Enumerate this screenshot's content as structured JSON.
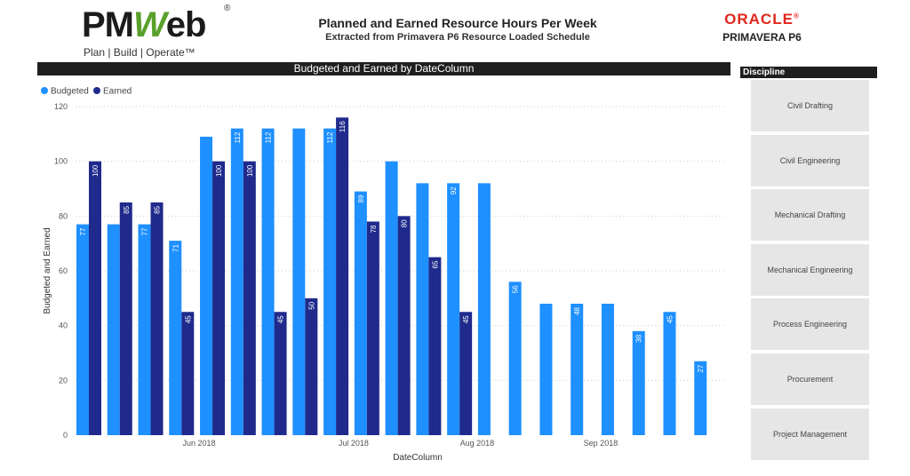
{
  "logo": {
    "brand_prefix": "PM",
    "brand_w": "W",
    "brand_suffix": "eb",
    "registered": "®",
    "tagline": "Plan | Build | Operate™"
  },
  "header": {
    "title": "Planned and Earned Resource Hours Per Week",
    "subtitle": "Extracted from Primavera P6 Resource Loaded Schedule"
  },
  "oracle": {
    "brand": "ORACLE",
    "registered": "®",
    "product": "PRIMAVERA P6"
  },
  "chart_title_bar": "Budgeted and Earned by DateColumn",
  "discipline_panel": {
    "header": "Discipline",
    "items": [
      "Civil Drafting",
      "Civil Engineering",
      "Mechanical Drafting",
      "Mechanical Engineering",
      "Process Engineering",
      "Procurement",
      "Project Management"
    ]
  },
  "colors": {
    "budgeted": "#1e90ff",
    "earned": "#1f2a8c",
    "title_bar": "#1f1f1f",
    "panel_item": "#e6e6e6"
  },
  "chart_data": {
    "type": "bar",
    "title": "Budgeted and Earned by DateColumn",
    "xlabel": "DateColumn",
    "ylabel": "Budgeted and Earned",
    "ylim": [
      0,
      120
    ],
    "yticks": [
      0,
      20,
      40,
      60,
      80,
      100,
      120
    ],
    "grid": true,
    "legend_position": "top-left",
    "x_tick_labels": [
      {
        "label": "Jun 2018",
        "after_index": 3
      },
      {
        "label": "Jul 2018",
        "after_index": 8
      },
      {
        "label": "Aug 2018",
        "after_index": 12
      },
      {
        "label": "Sep 2018",
        "after_index": 16
      }
    ],
    "series": [
      {
        "name": "Budgeted",
        "values": [
          77,
          77,
          77,
          71,
          109,
          112,
          112,
          112,
          112,
          89,
          100,
          92,
          92,
          92,
          56,
          48,
          48,
          48,
          38,
          45,
          27
        ],
        "labels": [
          "77",
          null,
          "77",
          "71",
          null,
          "112",
          "112",
          null,
          "112",
          "89",
          null,
          null,
          "92",
          null,
          "56",
          null,
          "48",
          null,
          "38",
          "45",
          "27"
        ]
      },
      {
        "name": "Earned",
        "values": [
          100,
          85,
          85,
          45,
          100,
          100,
          45,
          50,
          116,
          78,
          80,
          65,
          45,
          null,
          null,
          null,
          null,
          null,
          null,
          null,
          null
        ],
        "labels": [
          "100",
          "85",
          "85",
          "45",
          "100",
          "100",
          "45",
          "50",
          "116",
          "78",
          "80",
          "65",
          "45",
          null,
          null,
          null,
          null,
          null,
          null,
          null,
          null
        ]
      }
    ]
  }
}
